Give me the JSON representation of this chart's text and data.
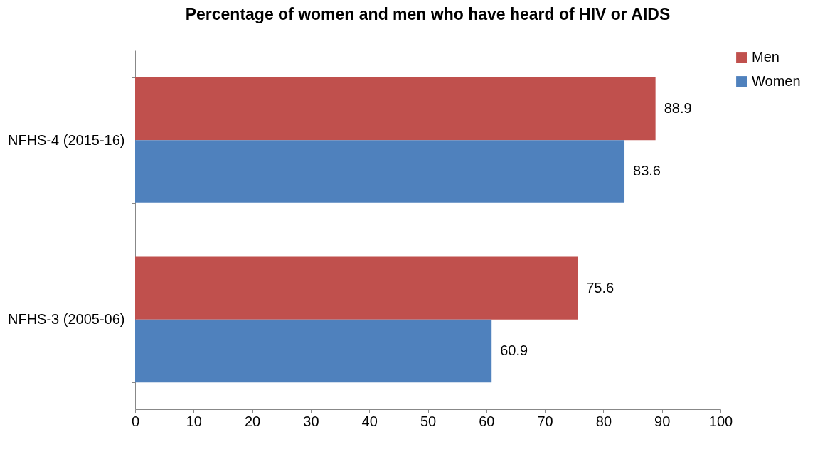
{
  "chart_data": {
    "type": "bar",
    "orientation": "horizontal",
    "title": "Percentage of women and men who have heard of HIV or AIDS",
    "categories": [
      "NFHS-4 (2015-16)",
      "NFHS-3 (2005-06)"
    ],
    "series": [
      {
        "name": "Men",
        "color": "#c0504d",
        "values": [
          88.9,
          75.6
        ]
      },
      {
        "name": "Women",
        "color": "#4f81bd",
        "values": [
          83.6,
          60.9
        ]
      }
    ],
    "xlim": [
      0,
      100
    ],
    "xticks": [
      0,
      10,
      20,
      30,
      40,
      50,
      60,
      70,
      80,
      90,
      100
    ],
    "data_labels": true,
    "legend": "right",
    "grid": false
  }
}
